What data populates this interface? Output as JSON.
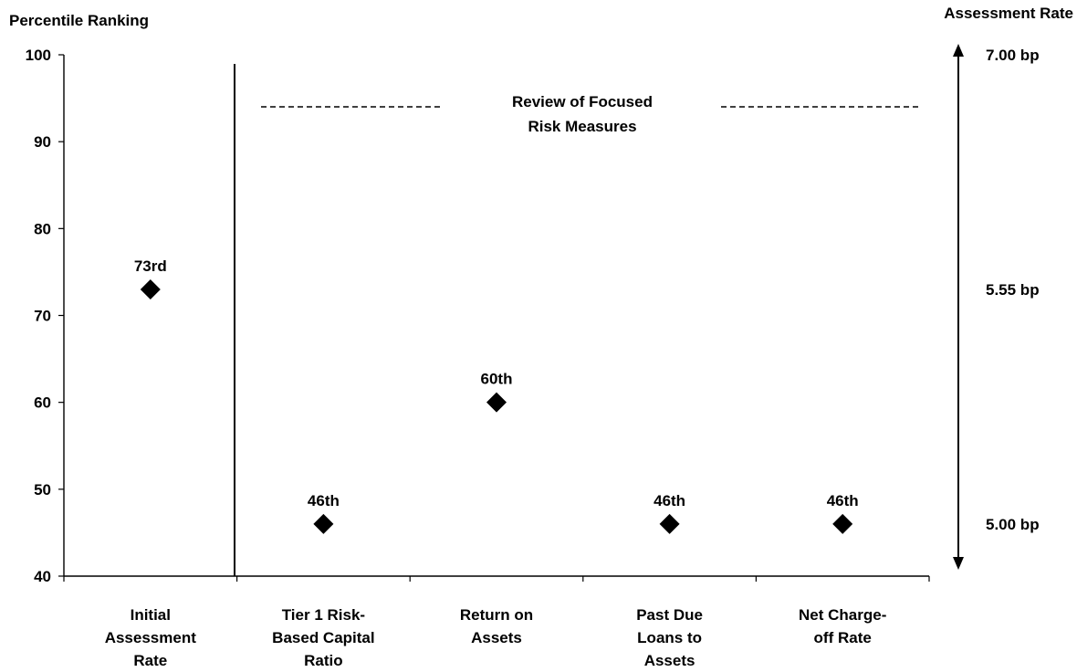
{
  "chart_data": {
    "type": "scatter",
    "ylabel": "Percentile Ranking",
    "secondary_ylabel": "Assessment Rate",
    "ylim": [
      40,
      100
    ],
    "yticks": [
      40,
      50,
      60,
      70,
      80,
      90,
      100
    ],
    "categories": [
      [
        "Initial",
        "Assessment",
        "Rate"
      ],
      [
        "Tier 1 Risk-",
        "Based Capital",
        "Ratio"
      ],
      [
        "Return on",
        "Assets"
      ],
      [
        "Past Due",
        "Loans to",
        "Assets"
      ],
      [
        "Net Charge-",
        "off Rate"
      ]
    ],
    "values": [
      73,
      46,
      60,
      46,
      46
    ],
    "point_labels": [
      "73rd",
      "46th",
      "60th",
      "46th",
      "46th"
    ],
    "marker": "diamond",
    "group_annotation": [
      "Review of Focused",
      "Risk Measures"
    ],
    "secondary_axis": [
      {
        "label": "7.00 bp",
        "y": 100
      },
      {
        "label": "5.55 bp",
        "y": 73
      },
      {
        "label": "5.00 bp",
        "y": 46
      }
    ],
    "grid": false
  }
}
